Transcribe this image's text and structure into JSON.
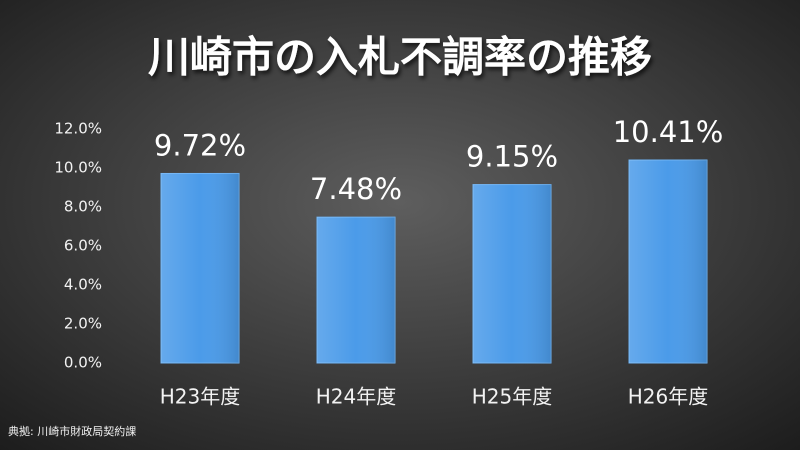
{
  "chart_data": {
    "type": "bar",
    "title": "川崎市の入札不調率の推移",
    "categories": [
      "H23年度",
      "H24年度",
      "H25年度",
      "H26年度"
    ],
    "values": [
      9.72,
      7.48,
      9.15,
      10.41
    ],
    "value_labels": [
      "9.72%",
      "7.48%",
      "9.15%",
      "10.41%"
    ],
    "color": "#4b9be9",
    "ylim": [
      0,
      12
    ],
    "yticks": [
      {
        "value": 0,
        "label": "0.0%"
      },
      {
        "value": 2,
        "label": "2.0%"
      },
      {
        "value": 4,
        "label": "4.0%"
      },
      {
        "value": 6,
        "label": "6.0%"
      },
      {
        "value": 8,
        "label": "8.0%"
      },
      {
        "value": 10,
        "label": "10.0%"
      },
      {
        "value": 12,
        "label": "12.0%"
      }
    ],
    "grid": false,
    "source": "典拠: 川崎市財政局契約課"
  }
}
